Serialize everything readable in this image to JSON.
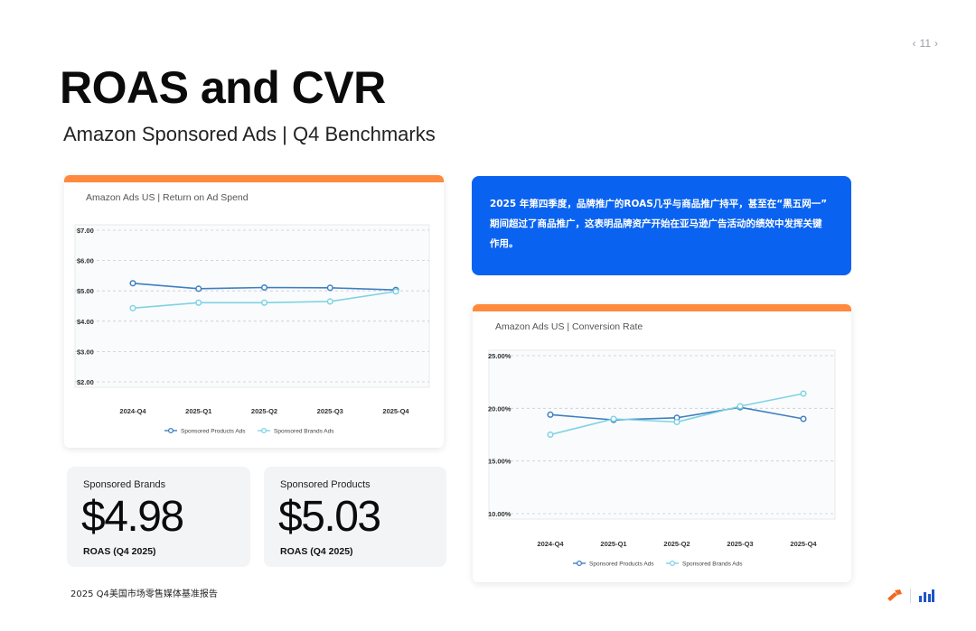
{
  "pager": {
    "prev": "‹",
    "page": "11",
    "next": "›"
  },
  "title": "ROAS and CVR",
  "subtitle": "Amazon Sponsored Ads | Q4 Benchmarks",
  "callout": {
    "lines": [
      "2025 年第四季度，品牌推广的ROAS几乎与商品推广持平，甚至在“黑五网一”",
      "期间超过了商品推广，这表明品牌资产开始在亚马逊广告活动的绩效中发挥关键",
      "作用。"
    ]
  },
  "stats": {
    "sb": {
      "label": "Sponsored Brands",
      "value": "$4.98",
      "sub": "ROAS (Q4 2025)"
    },
    "sp": {
      "label": "Sponsored Products",
      "value": "$5.03",
      "sub": "ROAS (Q4 2025)"
    }
  },
  "footer": "2025 Q4美国市场零售媒体基准报告",
  "colors": {
    "accent_bar": "#ff8a3d",
    "callout_bg": "#0a63f0",
    "series_products": "#3f7fc1",
    "series_brands": "#7fd3e3"
  },
  "chart_data": [
    {
      "type": "line",
      "title": "Amazon Ads US | Return on Ad Spend",
      "categories": [
        "2024-Q4",
        "2025-Q1",
        "2025-Q2",
        "2025-Q3",
        "2025-Q4"
      ],
      "y_ticks": [
        "$7.00",
        "$6.00",
        "$5.00",
        "$4.00",
        "$3.00",
        "$2.00"
      ],
      "ylim": [
        2,
        7
      ],
      "series": [
        {
          "name": "Sponsored Products Ads",
          "values": [
            5.25,
            5.07,
            5.11,
            5.1,
            5.03
          ],
          "color": "#3f7fc1"
        },
        {
          "name": "Sponsored Brands Ads",
          "values": [
            4.43,
            4.61,
            4.61,
            4.65,
            4.98
          ],
          "color": "#7fd3e3"
        }
      ],
      "grid": true,
      "legend": "bottom"
    },
    {
      "type": "line",
      "title": "Amazon Ads US | Conversion Rate",
      "categories": [
        "2024-Q4",
        "2025-Q1",
        "2025-Q2",
        "2025-Q3",
        "2025-Q4"
      ],
      "y_ticks": [
        "25.00%",
        "20.00%",
        "15.00%",
        "10.00%"
      ],
      "ylim": [
        10,
        25
      ],
      "series": [
        {
          "name": "Sponsored Products Ads",
          "values": [
            19.4,
            18.9,
            19.1,
            20.1,
            19.0
          ],
          "color": "#3f7fc1"
        },
        {
          "name": "Sponsored Brands Ads",
          "values": [
            17.5,
            19.0,
            18.7,
            20.2,
            21.4
          ],
          "color": "#7fd3e3"
        }
      ],
      "grid": true,
      "legend": "bottom"
    }
  ]
}
